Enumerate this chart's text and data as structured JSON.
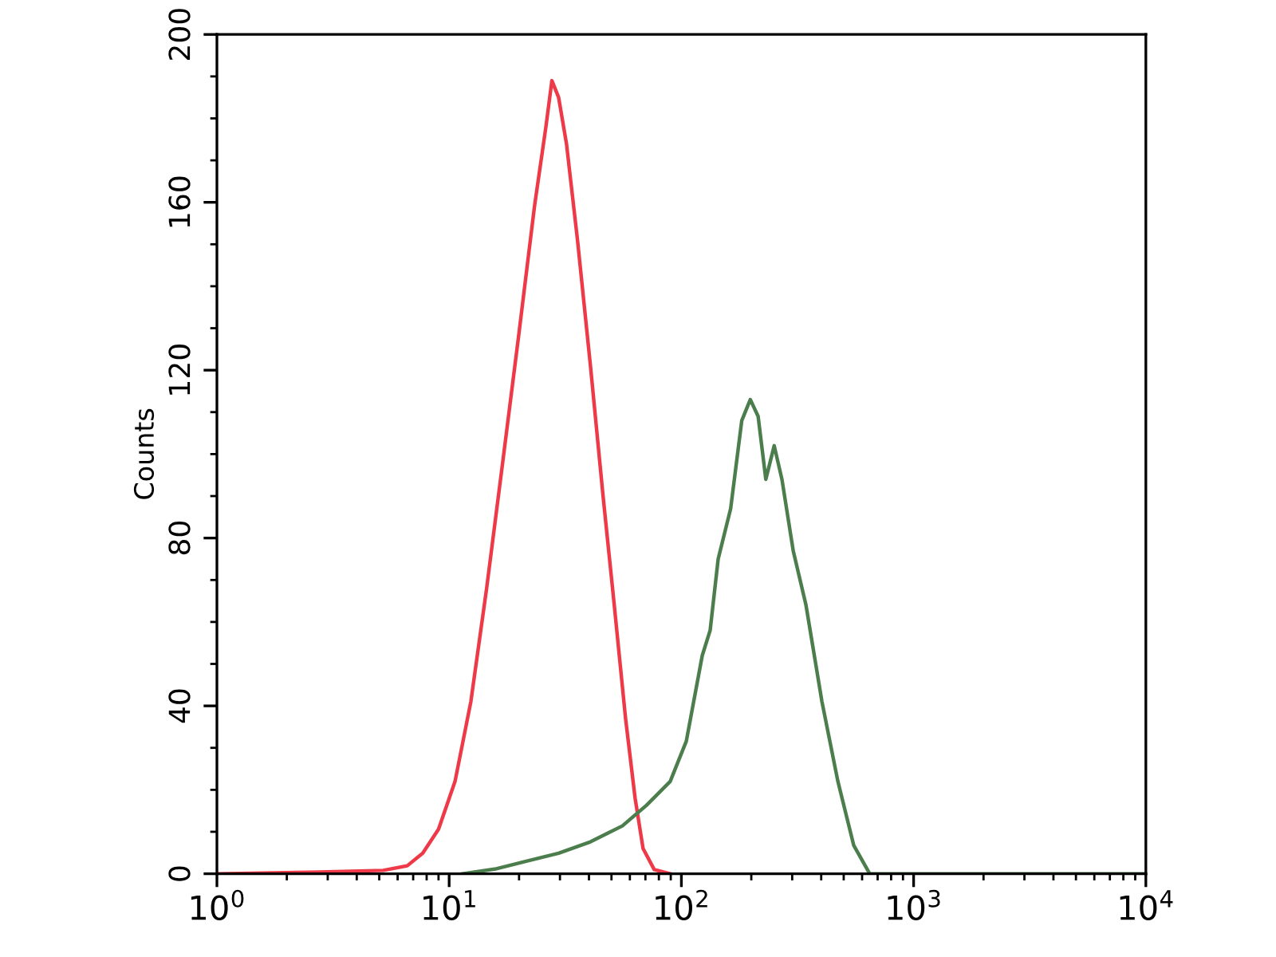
{
  "chart_data": {
    "type": "line",
    "ylabel": "Counts",
    "log": "x",
    "xlim": [
      1,
      10000
    ],
    "ylim": [
      0,
      200
    ],
    "xticks": [
      {
        "value": 1,
        "label": "10$^{0}$"
      },
      {
        "value": 10,
        "label": "10$^{1}$"
      },
      {
        "value": 100,
        "label": "10$^{2}$"
      },
      {
        "value": 1000,
        "label": "10$^{3}$"
      },
      {
        "value": 10000,
        "label": "10$^{4}$"
      }
    ],
    "yticks": [
      0,
      40,
      80,
      120,
      160,
      200
    ],
    "marker": "none",
    "line_style": "solid",
    "series": [
      {
        "color": "#ee3a48",
        "x": [
          1,
          2.75,
          5.2,
          6.6,
          7.7,
          9.0,
          10.6,
          12.4,
          14.5,
          17.0,
          19.9,
          23.3,
          26.1,
          27.7,
          29.6,
          32.0,
          35.7,
          40.6,
          46.0,
          51.4,
          57.5,
          63.2,
          68.4,
          76.4,
          89.5
        ],
        "values": [
          0,
          0.4,
          0.8,
          1.9,
          4.9,
          10.6,
          22,
          41,
          68,
          98,
          128,
          159,
          178,
          189,
          185,
          174,
          151,
          121,
          90,
          64,
          37,
          18,
          6,
          1,
          0
        ]
      },
      {
        "color": "#4c7d4c",
        "x": [
          11.4,
          15.7,
          21.5,
          29.6,
          40.6,
          55.7,
          70.7,
          89.5,
          105,
          123,
          133,
          144,
          163,
          182,
          198,
          214,
          231,
          251,
          271,
          303,
          344,
          403,
          472,
          552,
          647,
          10000
        ],
        "values": [
          0,
          1.1,
          3,
          4.9,
          7.6,
          11.4,
          16.3,
          22,
          31.6,
          52,
          58,
          75,
          87,
          108,
          113,
          109,
          94,
          102,
          94,
          77,
          64,
          41,
          22,
          6.8,
          0,
          0
        ]
      }
    ]
  }
}
